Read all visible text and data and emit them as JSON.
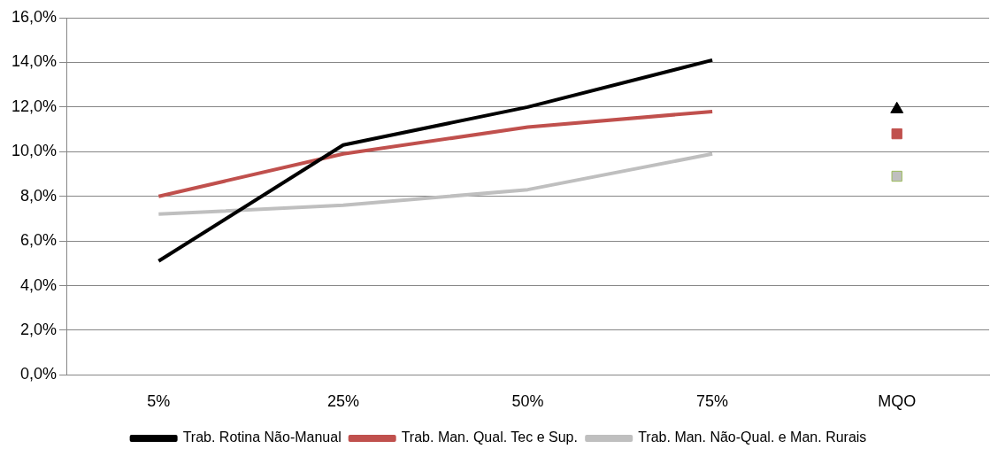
{
  "chart_data": {
    "type": "line",
    "categories": [
      "5%",
      "25%",
      "50%",
      "75%",
      "MQO"
    ],
    "series": [
      {
        "name": "Trab. Rotina Não-Manual",
        "color": "#000000",
        "values": [
          5.1,
          10.3,
          12.0,
          14.1,
          null
        ]
      },
      {
        "name": "Trab. Man. Qual. Tec e Sup.",
        "color": "#c0504d",
        "values": [
          8.0,
          9.9,
          11.1,
          11.8,
          null
        ]
      },
      {
        "name": "Trab. Man. Não-Qual. e Man. Rurais",
        "color": "#bfbfbf",
        "values": [
          7.2,
          7.6,
          8.3,
          9.9,
          null
        ]
      },
      {
        "type": "scatter",
        "color": "#000000",
        "marker": "triangle",
        "x": [
          "MQO"
        ],
        "values": [
          11.9
        ]
      },
      {
        "type": "scatter",
        "color": "#c0504d",
        "marker": "square",
        "x": [
          "MQO"
        ],
        "values": [
          10.8
        ]
      },
      {
        "type": "scatter",
        "color": "#bfbfbf",
        "marker": "square",
        "x": [
          "MQO"
        ],
        "values": [
          8.9
        ]
      }
    ],
    "ylim": [
      0,
      16
    ],
    "yticks": [
      {
        "value": 0,
        "label": "0,0%"
      },
      {
        "value": 2,
        "label": "2,0%"
      },
      {
        "value": 4,
        "label": "4,0%"
      },
      {
        "value": 6,
        "label": "6,0%"
      },
      {
        "value": 8,
        "label": "8,0%"
      },
      {
        "value": 10,
        "label": "10,0%"
      },
      {
        "value": 12,
        "label": "12,0%"
      },
      {
        "value": 14,
        "label": "14,0%"
      },
      {
        "value": 16,
        "label": "16,0%"
      }
    ],
    "grid": "y",
    "legend": "bottom",
    "marker": "none"
  }
}
